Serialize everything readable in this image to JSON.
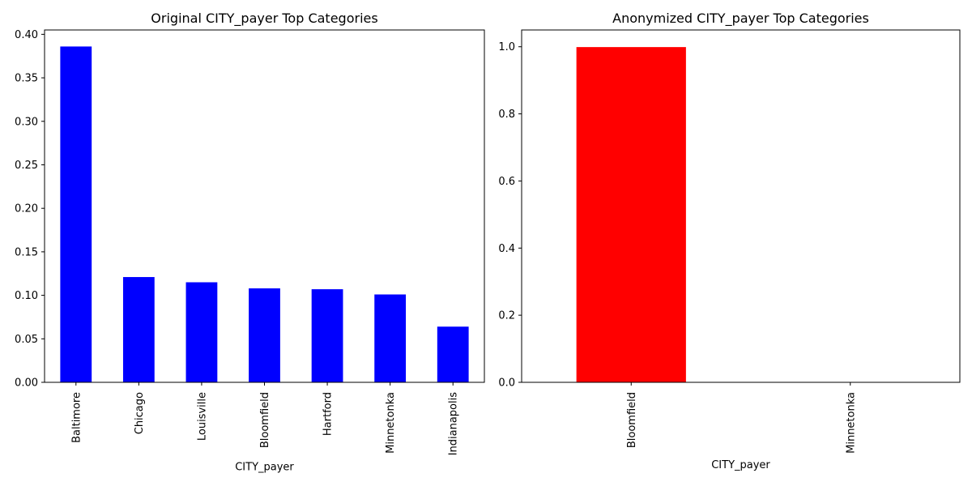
{
  "chart_data": [
    {
      "type": "bar",
      "title": "Original CITY_payer Top Categories",
      "xlabel": "CITY_payer",
      "ylabel": "",
      "categories": [
        "Baltimore",
        "Chicago",
        "Louisville",
        "Bloomfield",
        "Hartford",
        "Minnetonka",
        "Indianapolis"
      ],
      "values": [
        0.386,
        0.121,
        0.115,
        0.108,
        0.107,
        0.101,
        0.064
      ],
      "ylim": [
        0,
        0.405
      ],
      "yticks": [
        "0.00",
        "0.05",
        "0.10",
        "0.15",
        "0.20",
        "0.25",
        "0.30",
        "0.35",
        "0.40"
      ],
      "color": "#0000ff",
      "grid": false
    },
    {
      "type": "bar",
      "title": "Anonymized CITY_payer Top Categories",
      "xlabel": "CITY_payer",
      "ylabel": "",
      "categories": [
        "Bloomfield",
        "Minnetonka"
      ],
      "values": [
        0.999,
        0.001
      ],
      "ylim": [
        0,
        1.05
      ],
      "yticks": [
        "0.0",
        "0.2",
        "0.4",
        "0.6",
        "0.8",
        "1.0"
      ],
      "color": "#ff0000",
      "grid": false
    }
  ]
}
